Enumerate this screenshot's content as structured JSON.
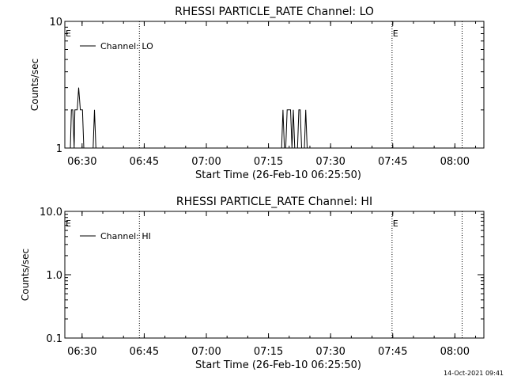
{
  "timestamp": "14-Oct-2021 09:41",
  "chart_data": [
    {
      "type": "line",
      "title": "RHESSI PARTICLE_RATE Channel: LO",
      "xlabel": "Start Time (26-Feb-10 06:25:50)",
      "ylabel": "Counts/sec",
      "y_scale": "log",
      "ylim": [
        1,
        10
      ],
      "y_ticks": [
        {
          "value": 1,
          "label": "1"
        },
        {
          "value": 10,
          "label": "10"
        }
      ],
      "xlim": [
        "06:25:50",
        "08:07:00"
      ],
      "x_ticks": [
        "06:30",
        "06:45",
        "07:00",
        "07:15",
        "07:30",
        "07:45",
        "08:00"
      ],
      "legend": {
        "position": "top-left",
        "label": "Channel: LO"
      },
      "markers": [
        {
          "time": "06:25:50",
          "label": "E"
        },
        {
          "time": "07:45:00",
          "label": "E"
        }
      ],
      "dotted_lines": [
        "06:43:50",
        "07:44:50",
        "08:01:45"
      ],
      "series": [
        {
          "points": [
            [
              "06:26:50",
              1.0
            ],
            [
              "06:27:10",
              1.0
            ],
            [
              "06:27:25",
              2.0
            ],
            [
              "06:27:45",
              2.0
            ],
            [
              "06:28:05",
              1.0
            ],
            [
              "06:28:15",
              2.0
            ],
            [
              "06:28:50",
              2.0
            ],
            [
              "06:29:10",
              3.0
            ],
            [
              "06:29:35",
              2.0
            ],
            [
              "06:30:05",
              2.0
            ],
            [
              "06:30:25",
              1.0
            ],
            [
              "06:32:40",
              1.0
            ],
            [
              "06:33:00",
              2.0
            ],
            [
              "06:33:20",
              1.0
            ],
            [
              "07:18:10",
              1.0
            ],
            [
              "07:18:30",
              2.0
            ],
            [
              "07:18:50",
              1.0
            ],
            [
              "07:19:10",
              1.0
            ],
            [
              "07:19:30",
              2.0
            ],
            [
              "07:20:20",
              2.0
            ],
            [
              "07:20:40",
              1.0
            ],
            [
              "07:21:00",
              2.0
            ],
            [
              "07:21:20",
              1.0
            ],
            [
              "07:22:00",
              1.0
            ],
            [
              "07:22:20",
              2.0
            ],
            [
              "07:22:40",
              2.0
            ],
            [
              "07:23:00",
              1.0
            ],
            [
              "07:23:40",
              1.0
            ],
            [
              "07:24:00",
              2.0
            ],
            [
              "07:24:20",
              1.0
            ]
          ]
        }
      ]
    },
    {
      "type": "line",
      "title": "RHESSI PARTICLE_RATE Channel: HI",
      "xlabel": "Start Time (26-Feb-10 06:25:50)",
      "ylabel": "Counts/sec",
      "y_scale": "log",
      "ylim": [
        0.1,
        10
      ],
      "y_ticks": [
        {
          "value": 0.1,
          "label": "0.1"
        },
        {
          "value": 1,
          "label": "1.0"
        },
        {
          "value": 10,
          "label": "10.0"
        }
      ],
      "xlim": [
        "06:25:50",
        "08:07:00"
      ],
      "x_ticks": [
        "06:30",
        "06:45",
        "07:00",
        "07:15",
        "07:30",
        "07:45",
        "08:00"
      ],
      "legend": {
        "position": "top-left",
        "label": "Channel: HI"
      },
      "markers": [
        {
          "time": "06:25:50",
          "label": "E"
        },
        {
          "time": "07:45:00",
          "label": "E"
        }
      ],
      "dotted_lines": [
        "06:43:50",
        "07:44:50",
        "08:01:45"
      ],
      "series": [
        {
          "points": []
        }
      ]
    }
  ]
}
